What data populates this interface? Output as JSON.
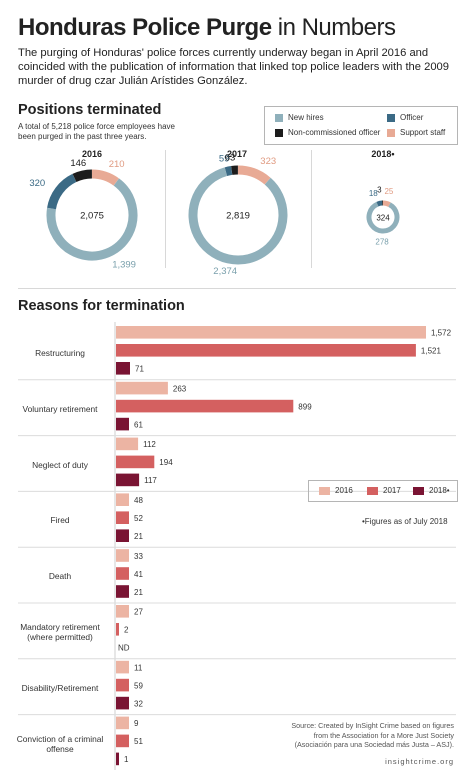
{
  "title": {
    "bold": "Honduras Police Purge",
    "rest": " in Numbers"
  },
  "intro": "The purging of Honduras' police forces currently underway began in April 2016 and coincided with the publication of information that linked top police leaders with the 2009 murder of drug czar Julián Arístides González.",
  "positions": {
    "heading": "Positions terminated",
    "subtitle": "A total of 5,218 police force employees have been purged in the past three years.",
    "legend": [
      {
        "label": "New hires",
        "color": "#8fb0bb"
      },
      {
        "label": "Officer",
        "color": "#3b6a85"
      },
      {
        "label": "Non-commissioned officer",
        "color": "#1c1c1c"
      },
      {
        "label": "Support staff",
        "color": "#e8aa95"
      }
    ]
  },
  "termination": {
    "heading": "Reasons for termination",
    "legend": [
      {
        "label": "2016",
        "color": "#ecb4a3"
      },
      {
        "label": "2017",
        "color": "#d46060"
      },
      {
        "label": "2018•",
        "color": "#7a1433"
      }
    ],
    "note": "•Figures as of July 2018"
  },
  "chart_data": [
    {
      "type": "pie",
      "title": "2016",
      "categories": [
        "New hires",
        "Officer",
        "Non-commissioned officer",
        "Support staff"
      ],
      "values": [
        1399,
        320,
        146,
        210
      ],
      "total": 2075,
      "colors": [
        "#8fb0bb",
        "#3b6a85",
        "#1c1c1c",
        "#e8aa95"
      ]
    },
    {
      "type": "pie",
      "title": "2017",
      "categories": [
        "New hires",
        "Officer",
        "Non-commissioned officer",
        "Support staff"
      ],
      "values": [
        2374,
        59,
        63,
        323
      ],
      "total": 2819,
      "colors": [
        "#8fb0bb",
        "#3b6a85",
        "#1c1c1c",
        "#e8aa95"
      ]
    },
    {
      "type": "pie",
      "title": "2018•",
      "categories": [
        "New hires",
        "Officer",
        "Non-commissioned officer",
        "Support staff"
      ],
      "values": [
        278,
        18,
        3,
        25
      ],
      "total": 324,
      "colors": [
        "#8fb0bb",
        "#3b6a85",
        "#1c1c1c",
        "#e8aa95"
      ]
    },
    {
      "type": "bar",
      "title": "Reasons for termination",
      "categories": [
        "Restructuring",
        "Voluntary retirement",
        "Neglect of duty",
        "Fired",
        "Death",
        "Mandatory retirement (where permitted)",
        "Disability/Retirement",
        "Conviction of a criminal offense"
      ],
      "series": [
        {
          "name": "2016",
          "values": [
            1572,
            263,
            112,
            48,
            33,
            27,
            11,
            9
          ]
        },
        {
          "name": "2017",
          "values": [
            1521,
            899,
            194,
            52,
            41,
            2,
            59,
            51
          ]
        },
        {
          "name": "2018•",
          "values": [
            71,
            61,
            117,
            21,
            21,
            null,
            32,
            1
          ]
        }
      ],
      "missing_label": "ND",
      "xlim": [
        0,
        1572
      ]
    }
  ],
  "source": "Source: Created by InSight Crime based on figures from the Association for a More Just Society (Asociación para una Sociedad más Justa – ASJ).",
  "brand": "insightcrime.org"
}
